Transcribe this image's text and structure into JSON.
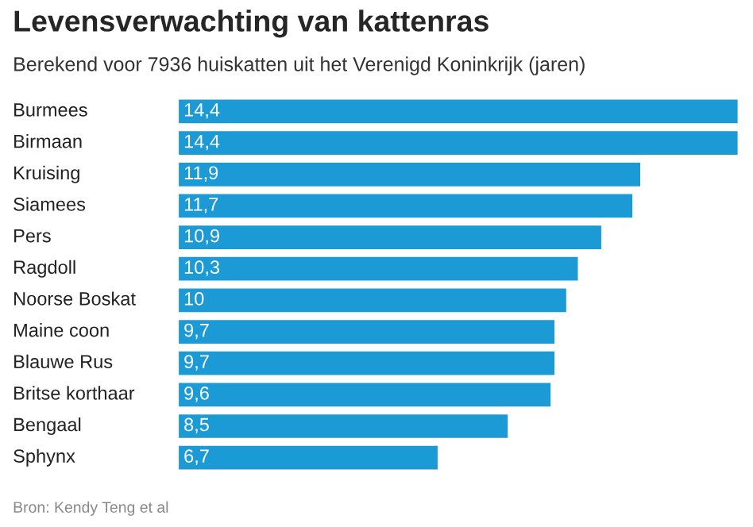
{
  "chart_data": {
    "type": "bar",
    "orientation": "horizontal",
    "title": "Levensverwachting van kattenras",
    "subtitle": "Berekend voor 7936 huiskatten uit het Verenigd Koninkrijk (jaren)",
    "categories": [
      "Burmees",
      "Birmaan",
      "Kruising",
      "Siamees",
      "Pers",
      "Ragdoll",
      "Noorse Boskat",
      "Maine coon",
      "Blauwe Rus",
      "Britse korthaar",
      "Bengaal",
      "Sphynx"
    ],
    "values": [
      14.4,
      14.4,
      11.9,
      11.7,
      10.9,
      10.3,
      10,
      9.7,
      9.7,
      9.6,
      8.5,
      6.7
    ],
    "value_labels": [
      "14,4",
      "14,4",
      "11,9",
      "11,7",
      "10,9",
      "10,3",
      "10",
      "9,7",
      "9,7",
      "9,6",
      "8,5",
      "6,7"
    ],
    "color": "#1c9ad6",
    "annotations": [
      "Bron: Kendy Teng et al"
    ]
  }
}
